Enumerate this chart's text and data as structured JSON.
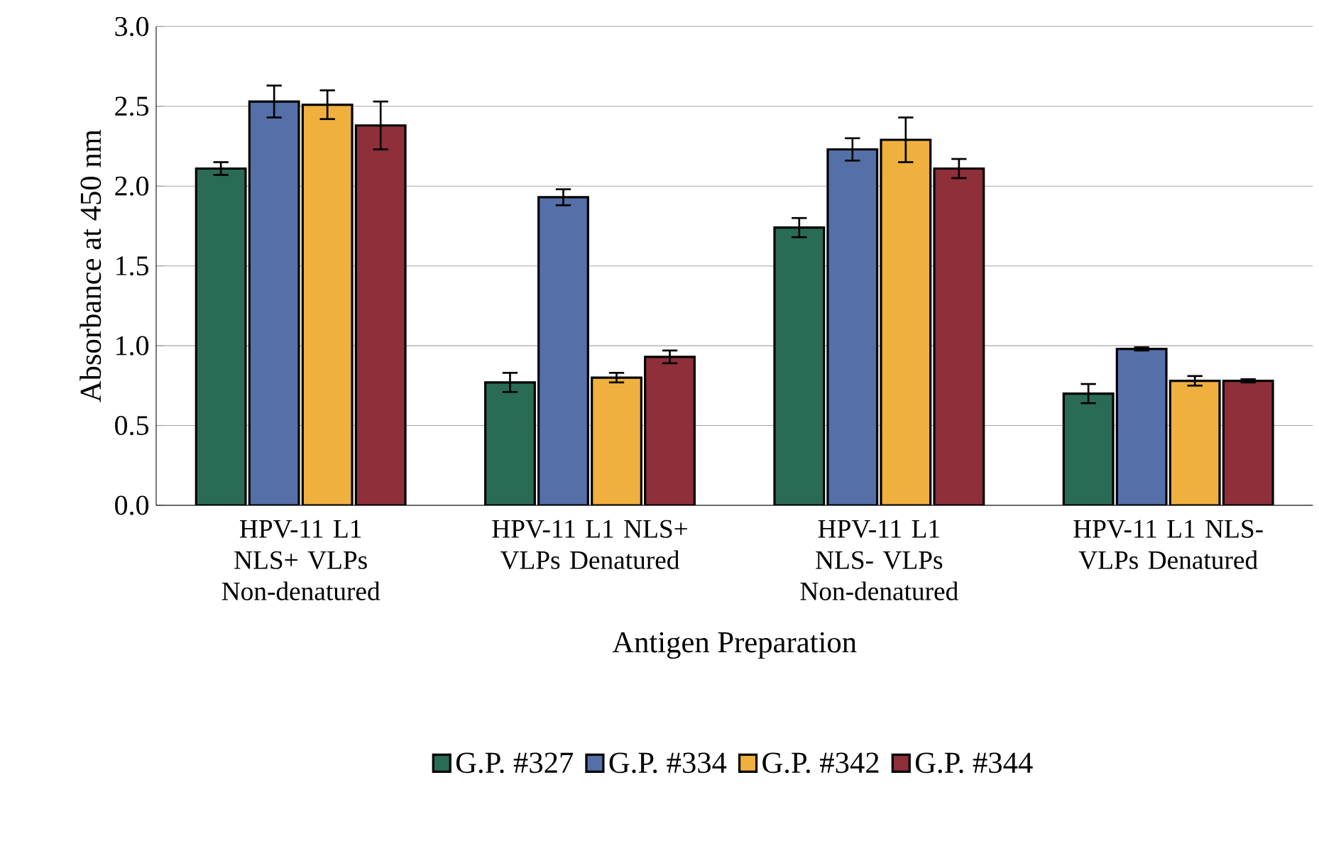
{
  "chart_data": {
    "type": "bar",
    "xlabel": "Antigen Preparation",
    "ylabel": "Absorbance at 450 nm",
    "categories": [
      "HPV-11 L1 NLS+ VLPs Non-denatured",
      "HPV-11 L1 NLS+ VLPs Denatured",
      "HPV-11 L1 NLS- VLPs Non-denatured",
      "HPV-11 L1 NLS- VLPs Denatured"
    ],
    "series": [
      {
        "name": "G.P. #327",
        "color": "#2a6b55",
        "values": [
          2.11,
          0.77,
          1.74,
          0.7
        ],
        "errors": [
          0.04,
          0.06,
          0.06,
          0.06
        ]
      },
      {
        "name": "G.P. #334",
        "color": "#5570a8",
        "values": [
          2.53,
          1.93,
          2.23,
          0.98
        ],
        "errors": [
          0.1,
          0.05,
          0.07,
          0.01
        ]
      },
      {
        "name": "G.P. #342",
        "color": "#f0b03e",
        "values": [
          2.51,
          0.8,
          2.29,
          0.78
        ],
        "errors": [
          0.09,
          0.03,
          0.14,
          0.03
        ]
      },
      {
        "name": "G.P. #344",
        "color": "#8e2f3a",
        "values": [
          2.38,
          0.93,
          2.11,
          0.78
        ],
        "errors": [
          0.15,
          0.04,
          0.06,
          0.01
        ]
      }
    ],
    "ylim": [
      0,
      3.0
    ],
    "yticks": [
      {
        "value": 0,
        "label": "0.0"
      },
      {
        "value": 0.5,
        "label": "0.5"
      },
      {
        "value": 1,
        "label": "1.0"
      },
      {
        "value": 1.5,
        "label": "1.5"
      },
      {
        "value": 2,
        "label": "2.0"
      },
      {
        "value": 2.5,
        "label": "2.5"
      },
      {
        "value": 3,
        "label": "3.0"
      }
    ],
    "grid": "y",
    "legend": "bottom"
  }
}
